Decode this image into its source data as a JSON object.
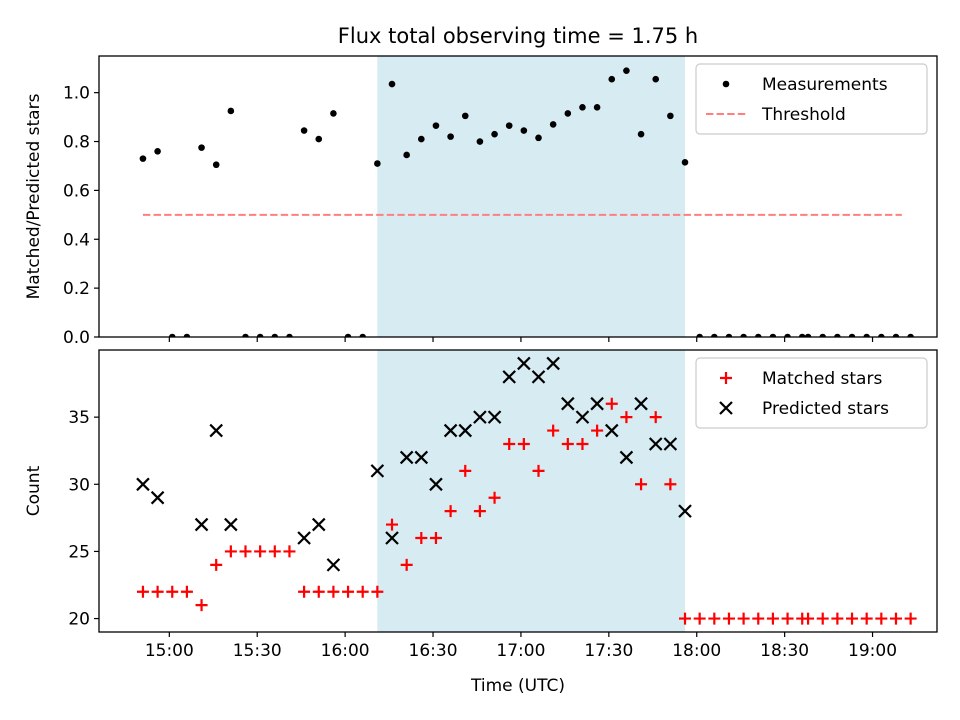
{
  "figure": {
    "title": "Flux total observing time = 1.75 h"
  },
  "chart_data": [
    {
      "type": "scatter",
      "ylabel": "Matched/Predicted stars",
      "xlabel": "",
      "x_range": [
        "14:36",
        "19:22"
      ],
      "ylim": [
        0,
        1.15
      ],
      "yticks": [
        0.0,
        0.2,
        0.4,
        0.6,
        0.8,
        1.0
      ],
      "ytick_labels": [
        "0.0",
        "0.2",
        "0.4",
        "0.6",
        "0.8",
        "1.0"
      ],
      "shaded_interval": [
        "16:11",
        "17:56"
      ],
      "shade_color": "#add8e6",
      "legend": {
        "placement": "top-right",
        "entries": [
          "Measurements",
          "Threshold"
        ]
      },
      "series": [
        {
          "name": "Measurements",
          "marker": "dot",
          "color": "#000000",
          "x": [
            "14:51",
            "14:56",
            "15:01",
            "15:06",
            "15:11",
            "15:16",
            "15:21",
            "15:26",
            "15:31",
            "15:36",
            "15:41",
            "15:46",
            "15:51",
            "15:56",
            "16:01",
            "16:06",
            "16:11",
            "16:16",
            "16:21",
            "16:26",
            "16:31",
            "16:36",
            "16:41",
            "16:46",
            "16:51",
            "16:56",
            "17:01",
            "17:06",
            "17:11",
            "17:16",
            "17:21",
            "17:26",
            "17:31",
            "17:36",
            "17:41",
            "17:46",
            "17:51",
            "17:56",
            "18:01",
            "18:06",
            "18:11",
            "18:16",
            "18:21",
            "18:26",
            "18:31",
            "18:36",
            "18:38",
            "18:43",
            "18:48",
            "18:53",
            "18:58",
            "19:03",
            "19:08",
            "19:13"
          ],
          "y": [
            0.73,
            0.76,
            0,
            0,
            0.775,
            0.705,
            0.925,
            0,
            0,
            0,
            0,
            0.845,
            0.81,
            0.915,
            0,
            0,
            0.71,
            1.035,
            0.745,
            0.81,
            0.865,
            0.82,
            0.905,
            0.8,
            0.83,
            0.865,
            0.845,
            0.815,
            0.87,
            0.915,
            0.94,
            0.94,
            1.055,
            1.09,
            0.83,
            1.055,
            0.905,
            0.715,
            0,
            0,
            0,
            0,
            0,
            0,
            0,
            0,
            0,
            0,
            0,
            0,
            0,
            0,
            0,
            0
          ]
        },
        {
          "name": "Threshold",
          "line": "dashed",
          "color": "#ff7f7f",
          "x": [
            "14:51",
            "19:10"
          ],
          "y": [
            0.5,
            0.5
          ]
        }
      ]
    },
    {
      "type": "scatter",
      "ylabel": "Count",
      "xlabel": "Time (UTC)",
      "x_range": [
        "14:36",
        "19:22"
      ],
      "ylim": [
        19,
        40
      ],
      "yticks": [
        20,
        25,
        30,
        35
      ],
      "ytick_labels": [
        "20",
        "25",
        "30",
        "35"
      ],
      "xticks": [
        "15:00",
        "15:30",
        "16:00",
        "16:30",
        "17:00",
        "17:30",
        "18:00",
        "18:30",
        "19:00"
      ],
      "xtick_labels": [
        "15:00",
        "15:30",
        "16:00",
        "16:30",
        "17:00",
        "17:30",
        "18:00",
        "18:30",
        "19:00"
      ],
      "shaded_interval": [
        "16:11",
        "17:56"
      ],
      "shade_color": "#add8e6",
      "legend": {
        "placement": "top-right",
        "entries": [
          "Matched stars",
          "Predicted stars"
        ]
      },
      "series": [
        {
          "name": "Matched stars",
          "marker": "plus",
          "color": "#ff0000",
          "x": [
            "14:51",
            "14:56",
            "15:01",
            "15:06",
            "15:11",
            "15:16",
            "15:21",
            "15:26",
            "15:31",
            "15:36",
            "15:41",
            "15:46",
            "15:51",
            "15:56",
            "16:01",
            "16:06",
            "16:11",
            "16:16",
            "16:21",
            "16:26",
            "16:31",
            "16:36",
            "16:41",
            "16:46",
            "16:51",
            "16:56",
            "17:01",
            "17:06",
            "17:11",
            "17:16",
            "17:21",
            "17:26",
            "17:31",
            "17:36",
            "17:41",
            "17:46",
            "17:51",
            "17:56",
            "18:01",
            "18:06",
            "18:11",
            "18:16",
            "18:21",
            "18:26",
            "18:31",
            "18:36",
            "18:38",
            "18:43",
            "18:48",
            "18:53",
            "18:58",
            "19:03",
            "19:08",
            "19:13"
          ],
          "y": [
            22,
            22,
            22,
            22,
            21,
            24,
            25,
            25,
            25,
            25,
            25,
            22,
            22,
            22,
            22,
            22,
            22,
            27,
            24,
            26,
            26,
            28,
            31,
            28,
            29,
            33,
            33,
            31,
            34,
            33,
            33,
            34,
            36,
            35,
            30,
            35,
            30,
            20,
            20,
            20,
            20,
            20,
            20,
            20,
            20,
            20,
            20,
            20,
            20,
            20,
            20,
            20,
            20,
            20
          ]
        },
        {
          "name": "Predicted stars",
          "marker": "x",
          "color": "#000000",
          "x": [
            "14:51",
            "14:56",
            "15:11",
            "15:16",
            "15:21",
            "15:46",
            "15:51",
            "15:56",
            "16:11",
            "16:16",
            "16:21",
            "16:26",
            "16:31",
            "16:36",
            "16:41",
            "16:46",
            "16:51",
            "16:56",
            "17:01",
            "17:06",
            "17:11",
            "17:16",
            "17:21",
            "17:26",
            "17:31",
            "17:36",
            "17:41",
            "17:46",
            "17:51",
            "17:56"
          ],
          "y": [
            30,
            29,
            27,
            34,
            27,
            26,
            27,
            24,
            31,
            26,
            32,
            32,
            30,
            34,
            34,
            35,
            35,
            38,
            39,
            38,
            39,
            36,
            35,
            36,
            34,
            32,
            36,
            33,
            33,
            28
          ]
        }
      ]
    }
  ]
}
